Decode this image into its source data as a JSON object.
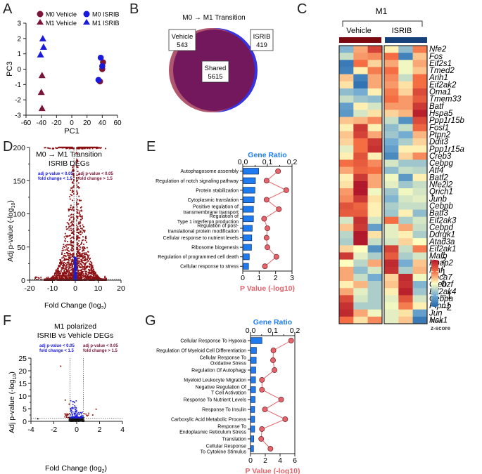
{
  "panels": {
    "A": "A",
    "B": "B",
    "C": "C",
    "D": "D",
    "E": "E",
    "F": "F",
    "G": "G"
  },
  "colors": {
    "vehicle": "#7a1538",
    "isrib": "#1a1adc",
    "volcano_up": "#8b0f12",
    "volcano_ns": "#1a1adc",
    "go_bar": "#1e7cf0",
    "go_point": "#e5636a",
    "venn_vehicle": "#b0566e",
    "venn_isrib": "#3434e6",
    "venn_shared": "#74185e"
  },
  "chart_data": [
    {
      "id": "A",
      "type": "scatter",
      "title": "",
      "xlabel": "PC1",
      "ylabel": "PC3",
      "xlim": [
        -60,
        60
      ],
      "ylim": [
        -3,
        3
      ],
      "xticks": [
        "-60",
        "-40",
        "-20",
        "0",
        "20",
        "40",
        "60"
      ],
      "yticks": [
        "3",
        "2",
        "1",
        "0",
        "-1",
        "-2",
        "-3"
      ],
      "legend": [
        "M0 Vehicle",
        "M0 ISRIB",
        "M1 Vehicle",
        "M1 ISRIB"
      ],
      "legend_position": "top",
      "series": [
        {
          "name": "M0 Vehicle",
          "marker": "circle",
          "color": "#7a1538",
          "points": [
            [
              41,
              0.45
            ],
            [
              40,
              0.0
            ],
            [
              37,
              -0.8
            ]
          ]
        },
        {
          "name": "M0 ISRIB",
          "marker": "circle",
          "color": "#1a1adc",
          "points": [
            [
              38,
              0.75
            ],
            [
              40,
              0.2
            ],
            [
              35,
              -0.7
            ]
          ]
        },
        {
          "name": "M1 Vehicle",
          "marker": "triangle",
          "color": "#7a1538",
          "points": [
            [
              -39,
              -0.4
            ],
            [
              -40,
              -1.5
            ],
            [
              -39,
              -2.55
            ]
          ]
        },
        {
          "name": "M1 ISRIB",
          "marker": "triangle",
          "color": "#1a1adc",
          "points": [
            [
              -38,
              2.0
            ],
            [
              -37,
              1.45
            ],
            [
              -41,
              0.95
            ]
          ]
        }
      ]
    },
    {
      "id": "B",
      "type": "venn",
      "title": "M0 → M1 Transition",
      "sets": [
        {
          "name": "Vehicle",
          "value": 543
        },
        {
          "name": "ISRIB",
          "value": 419
        },
        {
          "name": "Shared",
          "value": 5615
        }
      ]
    },
    {
      "id": "C",
      "type": "heatmap",
      "title": "M1",
      "groups": [
        "Vehicle",
        "ISRIB"
      ],
      "colorbar": {
        "label_line1": "Row",
        "label_line2": "z-score",
        "ticks": [
          "2",
          "1",
          "0",
          "−1",
          "−2"
        ],
        "range": [
          -2,
          2
        ]
      },
      "genes": [
        "Nfe2",
        "Fos",
        "Eif2s1",
        "Tmed2",
        "Arih1",
        "Eif2ak2",
        "Oma1",
        "Tmem33",
        "Batf",
        "Hspa5",
        "Ppp1r15b",
        "Fosl1",
        "Ptpn2",
        "Ddit3",
        "Ppp1r15a",
        "Creb3",
        "Cebpg",
        "Atf4",
        "Batf2",
        "Nfe2l2",
        "Qrich1",
        "Junb",
        "Cebpb",
        "Batf3",
        "Eif2ak3",
        "Cebpd",
        "Ddrgk1",
        "Atad3a",
        "Eif2ak1",
        "Mafb",
        "Rpap2",
        "Maf",
        "Abca7",
        "Crebzf",
        "Eif2ak4",
        "Cebpa",
        "Ptpn1",
        "Jun",
        "Nck1"
      ],
      "values": [
        [
          -0.9,
          0.6,
          1.5,
          0.1,
          -0.8,
          0.9
        ],
        [
          -0.4,
          0.7,
          0.8,
          1.0,
          -1.6,
          0.4
        ],
        [
          -1.7,
          1.0,
          0.3,
          0.6,
          -0.1,
          0.6
        ],
        [
          -1.6,
          0.1,
          0.9,
          1.0,
          -0.1,
          0.4
        ],
        [
          0.4,
          -1.6,
          0.6,
          0.8,
          -0.4,
          1.0
        ],
        [
          0.2,
          -1.8,
          0.6,
          0.7,
          0.2,
          1.0
        ],
        [
          -0.8,
          -1.0,
          0.1,
          0.9,
          0.3,
          1.4
        ],
        [
          -0.4,
          -0.7,
          -0.8,
          1.0,
          0.7,
          1.2
        ],
        [
          -1.2,
          0.1,
          -0.3,
          0.7,
          0.7,
          1.6
        ],
        [
          -1.3,
          -0.3,
          0.2,
          0.3,
          0.5,
          1.9
        ],
        [
          0.4,
          0.5,
          0.8,
          -0.4,
          -1.4,
          1.4
        ],
        [
          0.1,
          1.6,
          0.1,
          -0.8,
          -0.4,
          1.1
        ],
        [
          0.4,
          1.5,
          0.6,
          -0.7,
          -1.0,
          0.5
        ],
        [
          0.3,
          1.0,
          1.6,
          -1.0,
          -0.6,
          0.3
        ],
        [
          -0.2,
          1.0,
          1.7,
          -1.2,
          0.1,
          0.1
        ],
        [
          0.1,
          1.3,
          0.1,
          -1.5,
          0.3,
          0.8
        ],
        [
          1.0,
          1.2,
          0.8,
          -0.3,
          -0.7,
          -0.7
        ],
        [
          0.6,
          1.1,
          1.0,
          -0.8,
          -0.4,
          -0.5
        ],
        [
          0.1,
          1.6,
          0.6,
          -0.1,
          -1.3,
          0.1
        ],
        [
          0.2,
          2.0,
          0.6,
          -0.2,
          -0.7,
          -0.4
        ],
        [
          0.7,
          2.1,
          -0.1,
          -0.7,
          -0.1,
          -0.3
        ],
        [
          0.8,
          1.6,
          0.2,
          -0.9,
          -0.3,
          -0.2
        ],
        [
          1.3,
          1.1,
          0.1,
          -0.6,
          -0.4,
          -0.4
        ],
        [
          1.2,
          1.2,
          0.1,
          -0.7,
          0.1,
          -0.8
        ],
        [
          -0.3,
          1.7,
          -0.3,
          1.0,
          -0.6,
          -0.3
        ],
        [
          0.4,
          1.6,
          -1.2,
          -0.2,
          0.6,
          -0.4
        ],
        [
          -0.5,
          2.3,
          0.2,
          -0.2,
          0.1,
          -0.6
        ],
        [
          -0.6,
          2.2,
          -0.4,
          -0.3,
          0.3,
          0.0
        ],
        [
          0.3,
          0.0,
          -1.4,
          1.5,
          -0.4,
          0.9
        ],
        [
          1.6,
          -0.2,
          -0.6,
          1.2,
          -0.6,
          -0.3
        ],
        [
          0.0,
          -0.5,
          0.6,
          1.8,
          -1.0,
          0.4
        ],
        [
          0.6,
          -0.8,
          -0.3,
          1.7,
          -0.6,
          0.5
        ],
        [
          0.6,
          -0.4,
          -1.0,
          0.3,
          1.8,
          -0.1
        ],
        [
          0.1,
          0.5,
          -0.6,
          0.4,
          1.7,
          -0.9
        ],
        [
          0.6,
          -0.2,
          -0.6,
          0.1,
          1.9,
          -0.7
        ],
        [
          1.4,
          -0.3,
          -0.6,
          -0.2,
          1.3,
          -0.3
        ],
        [
          1.7,
          -0.6,
          -0.6,
          -0.1,
          0.9,
          0.1
        ],
        [
          1.8,
          0.6,
          -0.1,
          -0.2,
          0.2,
          -1.2
        ],
        [
          1.0,
          0.2,
          0.8,
          -0.2,
          0.4,
          -1.7
        ]
      ]
    },
    {
      "id": "D",
      "type": "scatter",
      "title_line1": "M0 → M1 Transition",
      "title_line2": "ISRIB DEGs",
      "legend_left_line1": "adj p-value < 0.05",
      "legend_left_line2": "fold change < 1.5",
      "legend_right_line1": "adj p-value < 0.05",
      "legend_right_line2": "fold change > 1.5",
      "xlabel": "Fold Change (log",
      "xlabel_sub": "2",
      "xlabel_end": ")",
      "ylabel": "Adj p-value (-log",
      "ylabel_sub": "10",
      "ylabel_end": ")",
      "xlim": [
        -20,
        20
      ],
      "ylim": [
        0,
        200
      ],
      "xticks": [
        "-20",
        "-10",
        "0",
        "10",
        "20"
      ],
      "yticks": [
        "200",
        "150",
        "100",
        "50",
        "0"
      ],
      "fc_threshold_log2": 0.585,
      "p_threshold": 1.3,
      "n_points_approx": 6000
    },
    {
      "id": "E",
      "type": "bar",
      "top_axis_title": "Gene Ratio",
      "bottom_axis_title": "P Value (-log10)",
      "gene_ratio_ticks": [
        "0.0",
        "0.1",
        "0.2"
      ],
      "gene_ratio_lim": [
        0,
        0.2
      ],
      "pvalue_ticks": [
        "0",
        "1",
        "2",
        "3"
      ],
      "pvalue_lim": [
        0,
        3
      ],
      "categories": [
        [
          "Autophagosome assembly"
        ],
        [
          "Regulation of notch signaling pathway"
        ],
        [
          "Protein stabilization"
        ],
        [
          "Cytoplasmic translation"
        ],
        [
          "Positive regulation of",
          "transmembrane transport"
        ],
        [
          "Regulation of",
          "Type 1 interferon production"
        ],
        [
          "Regulation of post-",
          "translational protein modification"
        ],
        [
          "Cellular response to nutrient levels"
        ],
        [
          "Ribosome biogenesis"
        ],
        [
          "Regulation of programmed cell death"
        ],
        [
          "Cellular response to stress"
        ]
      ],
      "gene_ratio": [
        0.063,
        0.05,
        0.048,
        0.045,
        0.042,
        0.042,
        0.037,
        0.035,
        0.034,
        0.025,
        0.022
      ],
      "pvalue": [
        2.15,
        1.45,
        2.65,
        1.45,
        2.2,
        1.3,
        1.5,
        1.45,
        1.5,
        2.05,
        1.35
      ]
    },
    {
      "id": "F",
      "type": "scatter",
      "title_line1": "M1 polarized",
      "title_line2": "ISRIB vs Vehicle DEGs",
      "legend_left_line1": "adj p-value < 0.05",
      "legend_left_line2": "fold change < 1.5",
      "legend_right_line1": "adj p-value < 0.05",
      "legend_right_line2": "fold change > 1.5",
      "xlabel": "Fold Change (log",
      "xlabel_sub": "2",
      "xlabel_end": ")",
      "ylabel": "Adj p-value (-log",
      "ylabel_sub": "10",
      "ylabel_end": ")",
      "xlim": [
        -4,
        4
      ],
      "ylim": [
        0,
        25
      ],
      "xticks": [
        "-4",
        "-2",
        "0",
        "2",
        "4"
      ],
      "yticks": [
        "25",
        "20",
        "15",
        "10",
        "5",
        "0"
      ],
      "fc_threshold_log2": 0.585,
      "p_threshold": 1.3,
      "highlight_points": [
        [
          -1.4,
          21.8
        ],
        [
          -1.0,
          8.4
        ],
        [
          -0.65,
          6.8
        ],
        [
          1.7,
          4.8
        ],
        [
          1.4,
          2.5
        ],
        [
          -3.4,
          1.0
        ]
      ]
    },
    {
      "id": "G",
      "type": "bar",
      "top_axis_title": "Gene Ratio",
      "bottom_axis_title": "P Value (-log10)",
      "gene_ratio_ticks": [
        "0.0",
        "0.1",
        "0.2"
      ],
      "gene_ratio_lim": [
        0,
        0.2
      ],
      "pvalue_ticks": [
        "0",
        "2",
        "4",
        "6"
      ],
      "pvalue_lim": [
        0,
        6
      ],
      "categories": [
        [
          "Cellular Response To Hypoxia"
        ],
        [
          "Regulation Of Myeloid Cell Differentiation"
        ],
        [
          "Cellular Response To",
          "Oxidative Stress"
        ],
        [
          "Regulation Of Autophagy"
        ],
        [
          "Myeloid Leukocyte Migration"
        ],
        [
          "Negative Regulation Of",
          "T Cell Activation"
        ],
        [
          "Response To Nutrient Levels"
        ],
        [
          "Response To Insulin"
        ],
        [
          "Carboxylic Acid Metabolic Process"
        ],
        [
          "Response To",
          "Endoplasmic Reticulum Stress"
        ],
        [
          "Translation"
        ],
        [
          "Cellular Response",
          "To Cytokine Stimulus"
        ]
      ],
      "gene_ratio": [
        0.05,
        0.025,
        0.024,
        0.022,
        0.021,
        0.021,
        0.019,
        0.017,
        0.017,
        0.017,
        0.013,
        0.012
      ],
      "pvalue": [
        5.5,
        3.1,
        3.05,
        3.25,
        1.55,
        1.55,
        4.15,
        1.95,
        4.7,
        1.55,
        1.45,
        2.7
      ]
    }
  ]
}
